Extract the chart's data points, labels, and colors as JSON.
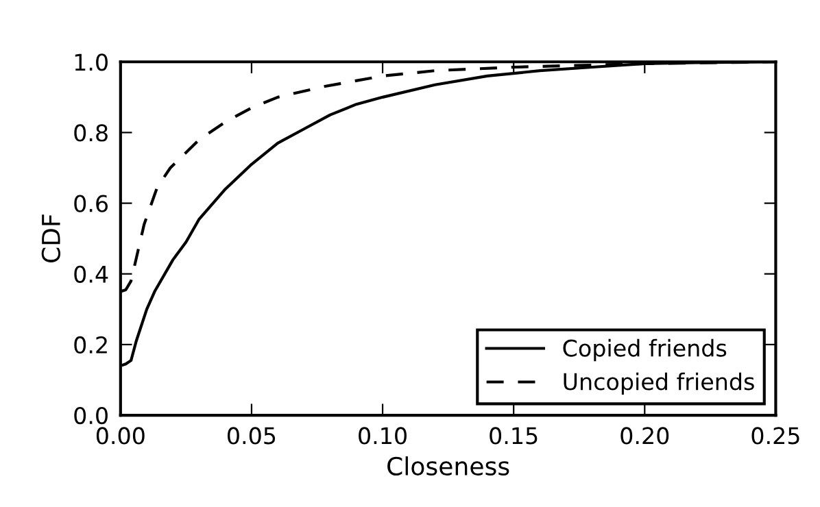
{
  "chart_data": {
    "type": "line",
    "xlabel": "Closeness",
    "ylabel": "CDF",
    "xlim": [
      0.0,
      0.25
    ],
    "ylim": [
      0.0,
      1.0
    ],
    "xticks": [
      {
        "value": 0.0,
        "label": "0.00"
      },
      {
        "value": 0.05,
        "label": "0.05"
      },
      {
        "value": 0.1,
        "label": "0.10"
      },
      {
        "value": 0.15,
        "label": "0.15"
      },
      {
        "value": 0.2,
        "label": "0.20"
      },
      {
        "value": 0.25,
        "label": "0.25"
      }
    ],
    "yticks": [
      {
        "value": 0.0,
        "label": "0.0"
      },
      {
        "value": 0.2,
        "label": "0.2"
      },
      {
        "value": 0.4,
        "label": "0.4"
      },
      {
        "value": 0.6,
        "label": "0.6"
      },
      {
        "value": 0.8,
        "label": "0.8"
      },
      {
        "value": 1.0,
        "label": "1.0"
      }
    ],
    "grid": false,
    "legend": "bottom right",
    "marker": "none",
    "series": [
      {
        "name": "Copied friends",
        "color": "#000000",
        "line_style": "solid",
        "x": [
          0.0,
          0.002,
          0.004,
          0.006,
          0.01,
          0.013,
          0.02,
          0.025,
          0.03,
          0.04,
          0.05,
          0.06,
          0.07,
          0.08,
          0.09,
          0.1,
          0.12,
          0.14,
          0.16,
          0.18,
          0.2,
          0.22,
          0.25
        ],
        "values": [
          0.14,
          0.145,
          0.155,
          0.21,
          0.3,
          0.35,
          0.44,
          0.49,
          0.555,
          0.64,
          0.71,
          0.77,
          0.81,
          0.85,
          0.88,
          0.9,
          0.935,
          0.96,
          0.975,
          0.985,
          0.995,
          0.998,
          1.0
        ]
      },
      {
        "name": "Uncopied friends",
        "color": "#000000",
        "line_style": "dashed",
        "x": [
          0.0,
          0.002,
          0.004,
          0.009,
          0.014,
          0.019,
          0.03,
          0.04,
          0.05,
          0.06,
          0.0775,
          0.1,
          0.12,
          0.15,
          0.2,
          0.25
        ],
        "values": [
          0.35,
          0.355,
          0.38,
          0.54,
          0.645,
          0.7,
          0.78,
          0.83,
          0.87,
          0.9,
          0.93,
          0.96,
          0.975,
          0.985,
          0.995,
          1.0
        ]
      }
    ]
  }
}
